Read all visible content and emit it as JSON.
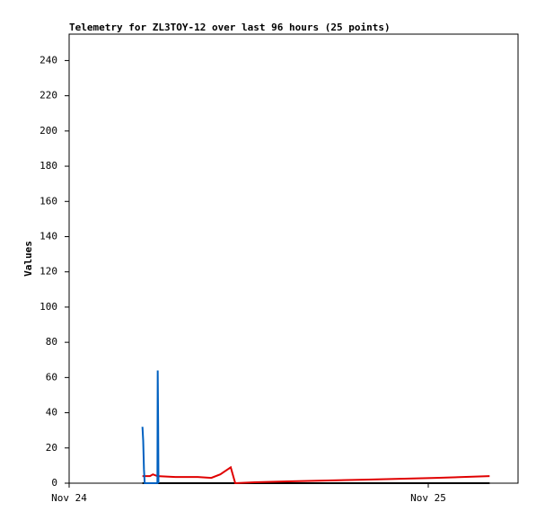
{
  "chart_data": {
    "type": "line",
    "title": "Telemetry for ZL3TOY-12 over last 96 hours (25 points)",
    "y_label": "Values",
    "xlim": [
      0,
      30
    ],
    "xticks": [
      {
        "value": 0,
        "label": "Nov 24"
      },
      {
        "value": 24,
        "label": "Nov 25"
      }
    ],
    "ylim": [
      0,
      255
    ],
    "yticks": [
      0,
      20,
      40,
      60,
      80,
      100,
      120,
      140,
      160,
      180,
      200,
      220,
      240
    ],
    "grid": false,
    "series": [
      {
        "color": "#000000",
        "x": [
          4.9,
          28.1
        ],
        "values": [
          0,
          0
        ]
      },
      {
        "color": "#e00000",
        "x": [
          4.9,
          5.4,
          5.6,
          5.9,
          7.1,
          8.6,
          9.5,
          10.1,
          10.8,
          11.1,
          12.4,
          14.6,
          17.3,
          19.7,
          22.1,
          24.5,
          28.1
        ],
        "values": [
          4,
          4,
          5,
          4,
          3.5,
          3.5,
          3,
          5,
          9,
          0,
          0.5,
          1,
          1.5,
          2,
          2.5,
          3,
          4
        ]
      },
      {
        "color": "#0060c0",
        "x": [
          4.9,
          4.95,
          5.0,
          5.05,
          5.9,
          5.92,
          5.95,
          5.97
        ],
        "values": [
          32,
          24,
          8,
          0,
          0,
          64,
          32,
          0
        ]
      }
    ]
  }
}
